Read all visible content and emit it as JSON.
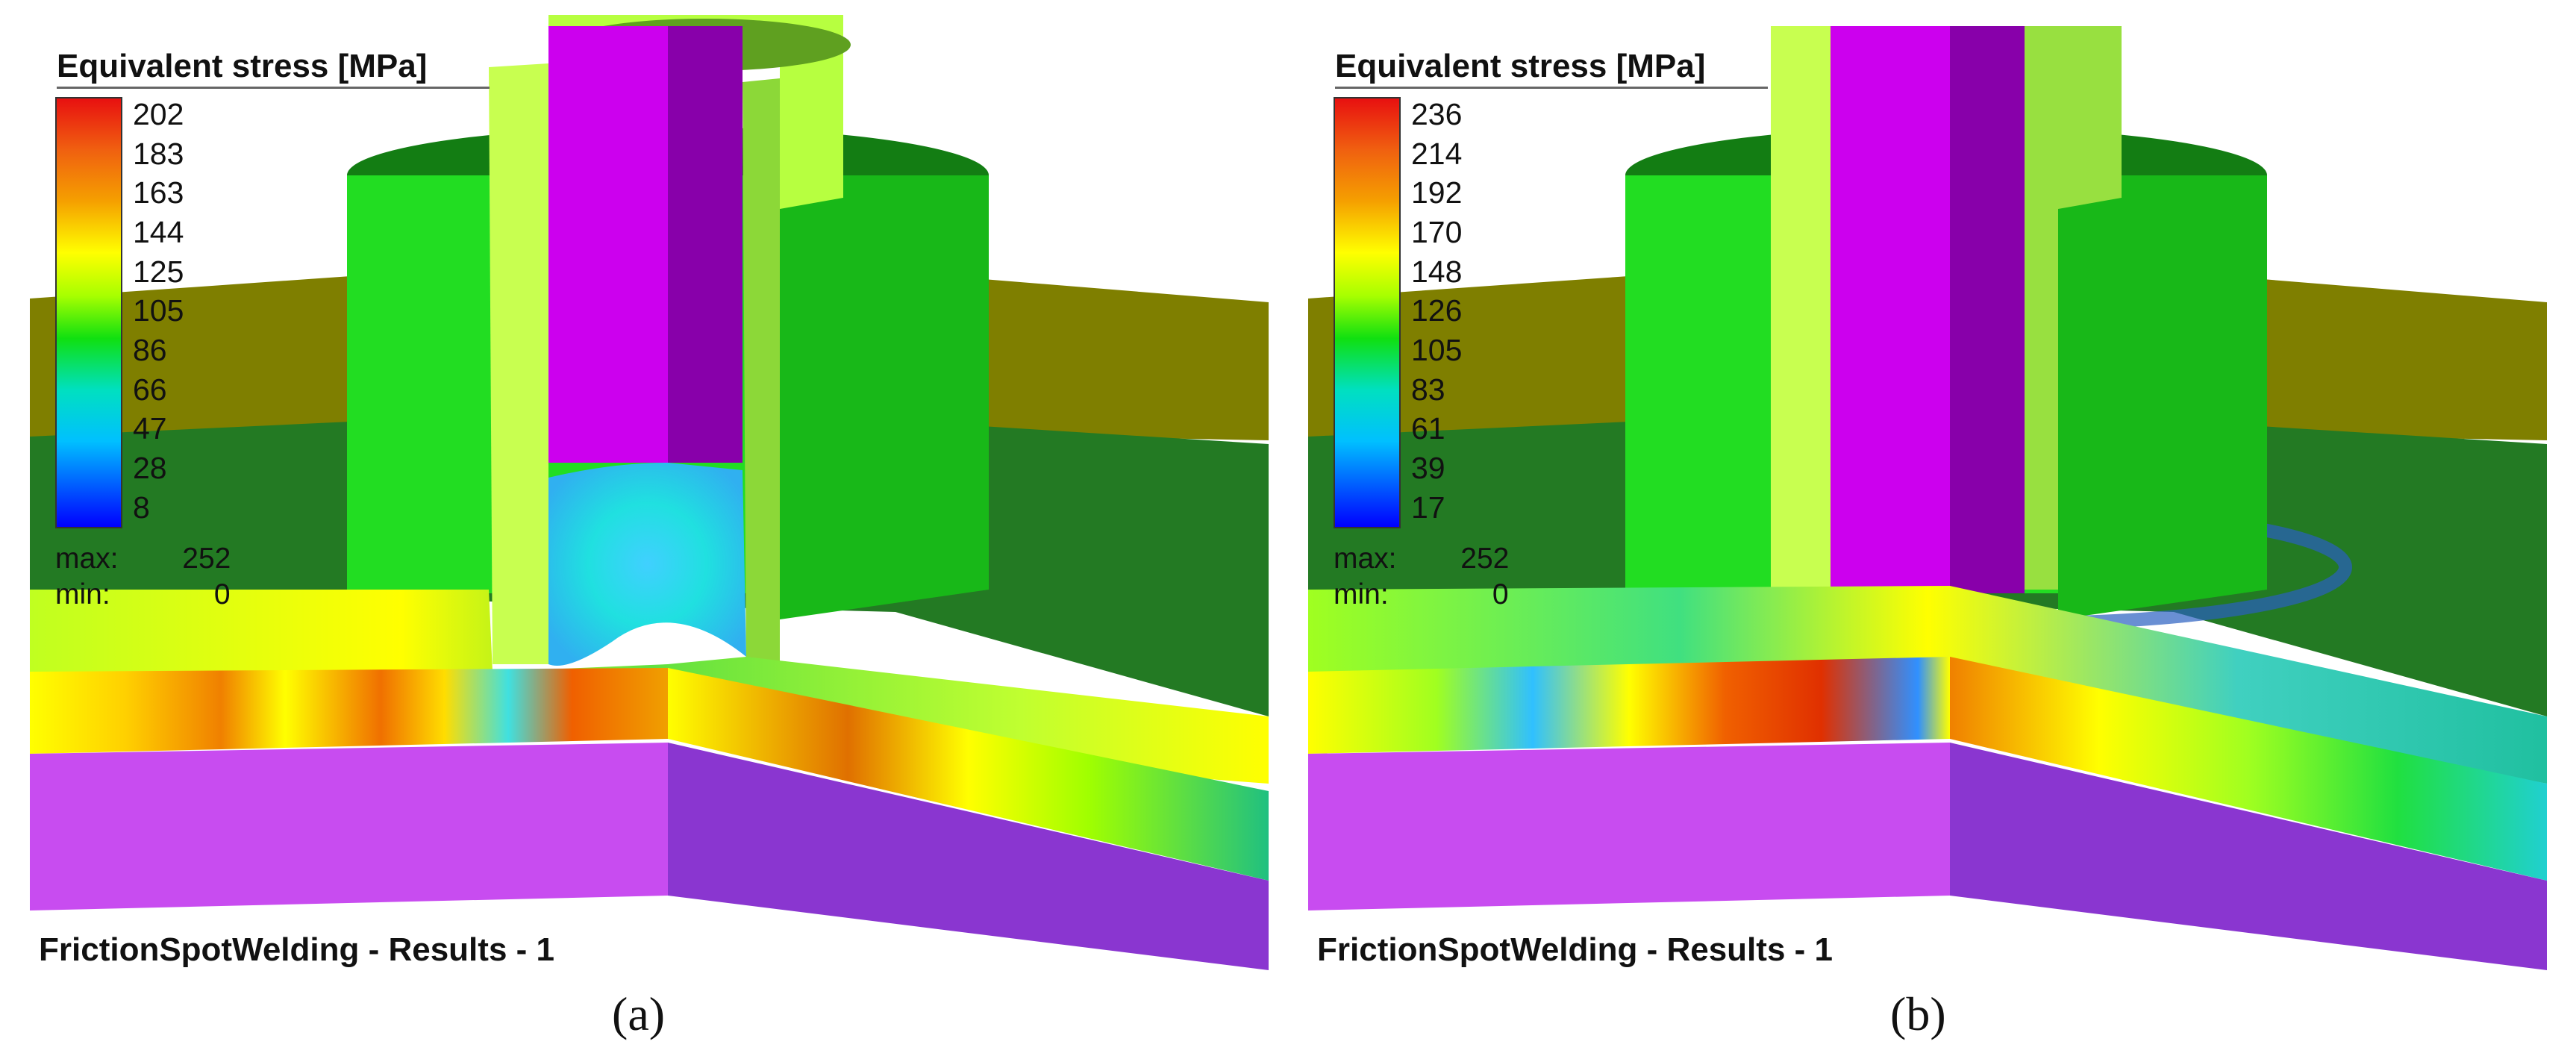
{
  "panels": [
    {
      "legend_title": "Equivalent stress [MPa]",
      "ticks": [
        "202",
        "183",
        "163",
        "144",
        "125",
        "105",
        "86",
        "66",
        "47",
        "28",
        "8"
      ],
      "max_label": "max:",
      "max_value": "252",
      "min_label": "min:",
      "min_value": "0",
      "results_label": "FrictionSpotWelding - Results - 1",
      "caption": "(a)"
    },
    {
      "legend_title": "Equivalent stress [MPa]",
      "ticks": [
        "236",
        "214",
        "192",
        "170",
        "148",
        "126",
        "105",
        "83",
        "61",
        "39",
        "17"
      ],
      "max_label": "max:",
      "max_value": "252",
      "min_label": "min:",
      "min_value": "0",
      "results_label": "FrictionSpotWelding - Results - 1",
      "caption": "(b)"
    }
  ],
  "colors": {
    "purple_plate": "#c84cf0",
    "purple_plate_dark": "#8a36d0",
    "magenta_pin": "#cc00ee",
    "green_clamp": "#22cc22",
    "olive_plate": "#7f7f00",
    "dark_green_surface": "#227722"
  }
}
